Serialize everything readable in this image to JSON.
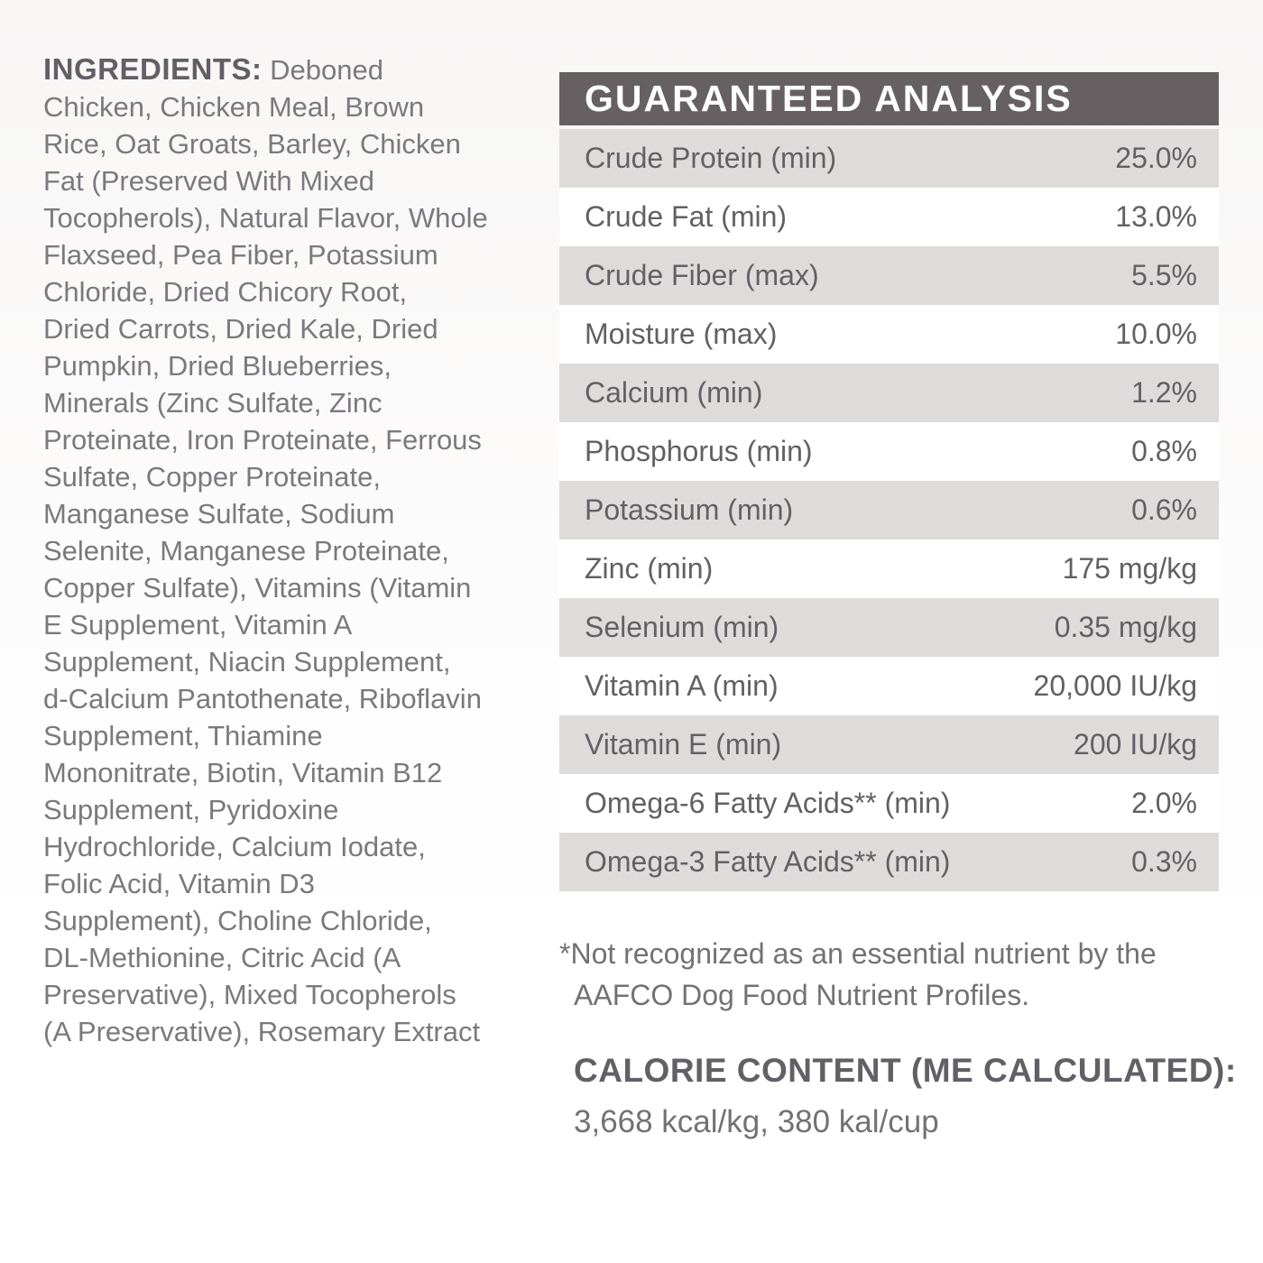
{
  "colors": {
    "page_bg_top": "#f7f6f5",
    "page_bg_bottom": "#ffffff",
    "header_bg": "#676062",
    "header_text": "#ffffff",
    "row_stripe_bg": "#dedcdb",
    "row_plain_bg": "#ffffff",
    "ingredients_text": "#7b797e",
    "table_text": "#626065"
  },
  "ingredients": {
    "label": "INGREDIENTS:",
    "text": " Deboned\nChicken, Chicken Meal, Brown\nRice, Oat Groats, Barley, Chicken\nFat (Preserved With Mixed\nTocopherols), Natural Flavor, Whole\nFlaxseed, Pea Fiber, Potassium\nChloride, Dried Chicory Root,\nDried Carrots, Dried Kale, Dried\nPumpkin, Dried Blueberries,\nMinerals (Zinc Sulfate, Zinc\nProteinate, Iron Proteinate, Ferrous\nSulfate, Copper Proteinate,\nManganese Sulfate, Sodium\nSelenite, Manganese Proteinate,\nCopper Sulfate), Vitamins (Vitamin\nE Supplement, Vitamin A\nSupplement, Niacin Supplement,\nd-Calcium Pantothenate, Riboflavin\nSupplement, Thiamine\nMononitrate, Biotin, Vitamin B12\nSupplement, Pyridoxine\nHydrochloride, Calcium Iodate,\nFolic Acid, Vitamin D3\nSupplement), Choline Chloride,\nDL-Methionine, Citric Acid (A\nPreservative), Mixed Tocopherols\n(A Preservative), Rosemary Extract"
  },
  "analysis": {
    "title": "GUARANTEED ANALYSIS",
    "rows": [
      {
        "label": "Crude Protein (min)",
        "value": "25.0%"
      },
      {
        "label": "Crude Fat (min)",
        "value": "13.0%"
      },
      {
        "label": "Crude Fiber (max)",
        "value": "5.5%"
      },
      {
        "label": "Moisture (max)",
        "value": "10.0%"
      },
      {
        "label": "Calcium (min)",
        "value": "1.2%"
      },
      {
        "label": "Phosphorus (min)",
        "value": "0.8%"
      },
      {
        "label": "Potassium (min)",
        "value": "0.6%"
      },
      {
        "label": "Zinc (min)",
        "value": "175 mg/kg"
      },
      {
        "label": "Selenium (min)",
        "value": "0.35 mg/kg"
      },
      {
        "label": "Vitamin A (min)",
        "value": "20,000 IU/kg"
      },
      {
        "label": "Vitamin E (min)",
        "value": "200 IU/kg"
      },
      {
        "label": "Omega-6 Fatty Acids** (min)",
        "value": "2.0%"
      },
      {
        "label": "Omega-3 Fatty Acids** (min)",
        "value": "0.3%"
      }
    ]
  },
  "footnote": {
    "text": "*Not recognized as an essential nutrient by the\nAAFCO Dog Food Nutrient Profiles."
  },
  "calorie": {
    "heading": "CALORIE CONTENT (ME CALCULATED):",
    "value": "3,668 kcal/kg, 380 kal/cup"
  }
}
